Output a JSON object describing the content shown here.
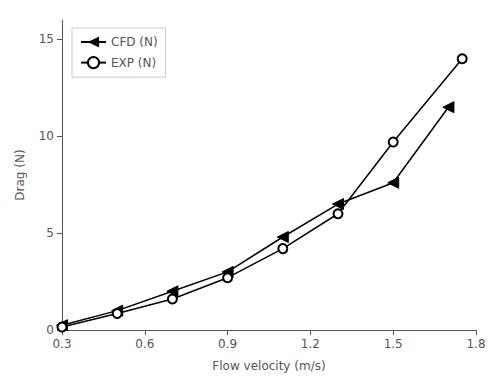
{
  "chart_data": {
    "type": "line",
    "xlabel": "Flow velocity (m/s)",
    "ylabel": "Drag (N)",
    "xlim": [
      0.3,
      1.8
    ],
    "ylim": [
      0,
      16
    ],
    "xticks": [
      0.3,
      0.6,
      0.9,
      1.2,
      1.5,
      1.8
    ],
    "yticks": [
      0,
      5,
      10,
      15
    ],
    "grid": false,
    "legend": "upper left",
    "series": [
      {
        "name": "CFD (N)",
        "color": "#000000",
        "marker": "triangle_left",
        "x": [
          0.3,
          0.5,
          0.7,
          0.9,
          1.1,
          1.3,
          1.5,
          1.7
        ],
        "values": [
          0.25,
          1.0,
          2.0,
          3.0,
          4.8,
          6.5,
          7.6,
          11.5
        ]
      },
      {
        "name": "EXP (N)",
        "color": "#000000",
        "marker": "circle_open",
        "x": [
          0.3,
          0.5,
          0.7,
          0.9,
          1.1,
          1.3,
          1.5,
          1.75
        ],
        "values": [
          0.15,
          0.85,
          1.6,
          2.7,
          4.2,
          6.0,
          9.7,
          14.0
        ]
      }
    ]
  }
}
